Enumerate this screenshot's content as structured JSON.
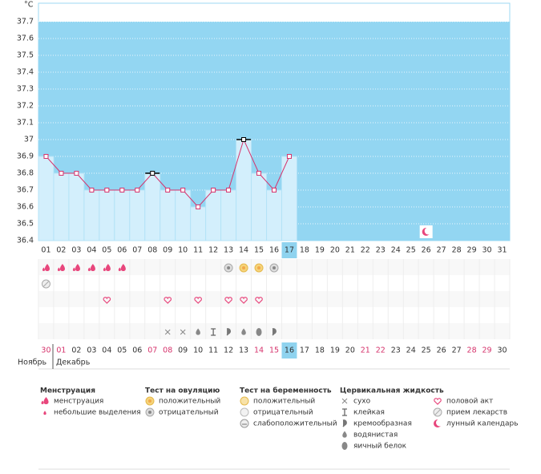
{
  "chart_data": {
    "type": "line",
    "y_label": "°C",
    "categories": [
      "01",
      "02",
      "03",
      "04",
      "05",
      "06",
      "07",
      "08",
      "09",
      "10",
      "11",
      "12",
      "13",
      "14",
      "15",
      "16",
      "17",
      "18",
      "19",
      "20",
      "21",
      "22",
      "23",
      "24",
      "25",
      "26",
      "27",
      "28",
      "29",
      "30",
      "31"
    ],
    "series": [
      {
        "name": "temperature",
        "color": "#d6336c",
        "values": [
          36.9,
          36.8,
          36.8,
          36.7,
          36.7,
          36.7,
          36.7,
          36.8,
          36.7,
          36.7,
          36.6,
          36.7,
          36.7,
          37,
          36.8,
          36.7,
          36.9,
          null,
          null,
          null,
          null,
          null,
          null,
          null,
          null,
          null,
          null,
          null,
          null,
          null,
          null
        ]
      }
    ],
    "ylim": [
      36.4,
      37.8
    ],
    "yticks": [
      36.4,
      36.5,
      36.6,
      36.7,
      36.8,
      36.9,
      37,
      37.1,
      37.2,
      37.3,
      37.4,
      37.5,
      37.6,
      37.7
    ],
    "grid": true
  },
  "cycle_dates": [
    "30",
    "01",
    "02",
    "03",
    "04",
    "05",
    "06",
    "07",
    "08",
    "09",
    "10",
    "11",
    "12",
    "13",
    "14",
    "15",
    "16",
    "17",
    "18",
    "19",
    "20",
    "21",
    "22",
    "23",
    "24",
    "25",
    "26",
    "27",
    "28",
    "29",
    "30"
  ],
  "months": [
    "Ноябрь",
    "Декабрь"
  ],
  "legend": [
    {
      "title": "Менструация",
      "items": [
        "менструация",
        "небольшие выделения"
      ]
    },
    {
      "title": "Тест на овуляцию",
      "items": [
        "положительный",
        "отрицательный"
      ]
    },
    {
      "title": "Тест на беременность",
      "items": [
        "положительный",
        "отрицательный",
        "слабоположительный"
      ]
    },
    {
      "title": "Цервикальная жидкость",
      "items": [
        "сухо",
        "клейкая",
        "кремообразная",
        "водянистая",
        "яичный белок"
      ]
    },
    {
      "items": [
        "половой акт",
        "прием лекарств",
        "лунный календарь"
      ]
    }
  ]
}
